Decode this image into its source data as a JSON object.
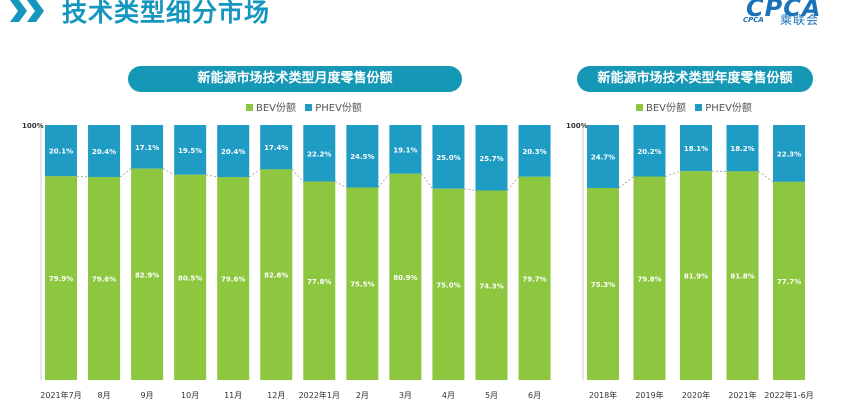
{
  "header": {
    "title": "技术类型细分市场"
  },
  "logo": {
    "mark": "CPCA",
    "sub": "CPCA",
    "cn": "乘联会"
  },
  "colors": {
    "bev": "#8dc63f",
    "phev": "#1f9cc4",
    "accent": "#1598b6",
    "title": "#1596bf"
  },
  "chart_data": [
    {
      "type": "bar",
      "stacked": true,
      "title": "新能源市场技术类型月度零售份额",
      "categories": [
        "2021年7月",
        "8月",
        "9月",
        "10月",
        "11月",
        "12月",
        "2022年1月",
        "2月",
        "3月",
        "4月",
        "5月",
        "6月"
      ],
      "series": [
        {
          "name": "BEV份额",
          "values": [
            "79.9%",
            "79.6%",
            "82.9%",
            "80.5%",
            "79.6%",
            "82.6%",
            "77.8%",
            "75.5%",
            "80.9%",
            "75.0%",
            "74.3%",
            "79.7%"
          ]
        },
        {
          "name": "PHEV份额",
          "values": [
            "20.1%",
            "20.4%",
            "17.1%",
            "19.5%",
            "20.4%",
            "17.4%",
            "22.2%",
            "24.5%",
            "19.1%",
            "25.0%",
            "25.7%",
            "20.3%"
          ]
        }
      ],
      "y_top_label": "100%",
      "ylim": [
        0,
        100
      ],
      "legend_position": "top-center",
      "grid": false
    },
    {
      "type": "bar",
      "stacked": true,
      "title": "新能源市场技术类型年度零售份额",
      "categories": [
        "2018年",
        "2019年",
        "2020年",
        "2021年",
        "2022年1-6月"
      ],
      "series": [
        {
          "name": "BEV份额",
          "values": [
            "75.3%",
            "79.8%",
            "81.9%",
            "81.8%",
            "77.7%"
          ]
        },
        {
          "name": "PHEV份额",
          "values": [
            "24.7%",
            "20.2%",
            "18.1%",
            "18.2%",
            "22.3%"
          ]
        }
      ],
      "y_top_label": "100%",
      "ylim": [
        0,
        100
      ],
      "legend_position": "top-center",
      "grid": false
    }
  ]
}
